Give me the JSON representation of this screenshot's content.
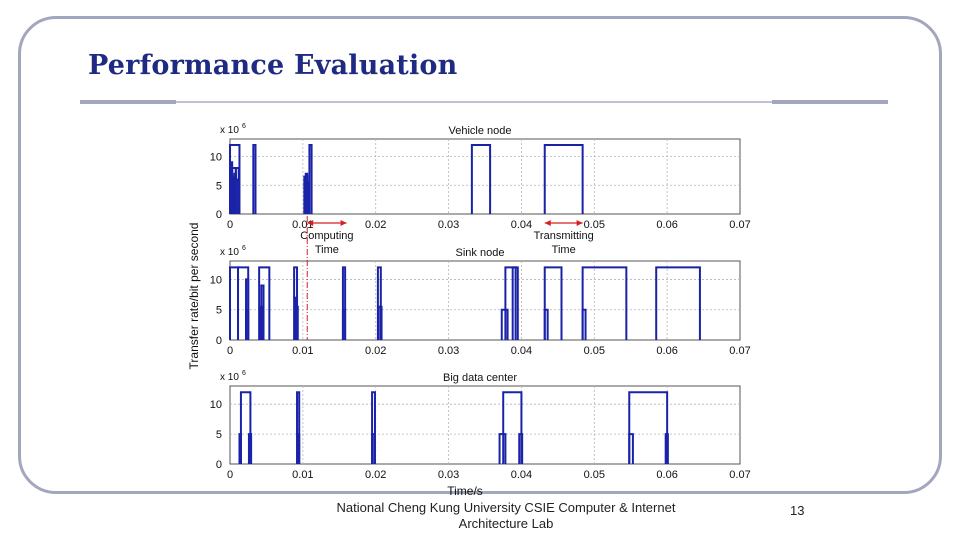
{
  "slide": {
    "title": "Performance Evaluation",
    "footer_line1": "National Cheng Kung University CSIE Computer & Internet",
    "footer_line2": "Architecture Lab",
    "page_number": "13"
  },
  "colors": {
    "title": "#1f2a82",
    "series": "#1a23a8",
    "annotation": "#d62020",
    "frame": "#a2a7bd"
  },
  "chart_data": {
    "type": "line",
    "ylabel": "Transfer rate/bit per second",
    "xlabel": "Time/s",
    "xlim": [
      0,
      0.07
    ],
    "ylim": [
      0,
      12
    ],
    "x_ticks": [
      "0",
      "0.01",
      "0.02",
      "0.03",
      "0.04",
      "0.05",
      "0.06",
      "0.07"
    ],
    "y_ticks": [
      "0",
      "5",
      "10"
    ],
    "y_exponent": "x 10",
    "y_exponent_power": "6",
    "grid": true,
    "panels": [
      {
        "title": "Vehicle node",
        "pulses": [
          {
            "start": 0.0,
            "end": 0.0013,
            "value": 12
          },
          {
            "start": 0.0005,
            "end": 0.0011,
            "value": 6
          },
          {
            "start": 0.0008,
            "end": 0.0012,
            "value": 8
          },
          {
            "start": 0.0006,
            "end": 0.0008,
            "value": 7
          },
          {
            "start": 0.0003,
            "end": 0.0004,
            "value": 6.5
          },
          {
            "start": 0.0002,
            "end": 0.0003,
            "value": 9
          },
          {
            "start": 0.0004,
            "end": 0.0005,
            "value": 6
          },
          {
            "start": 0.0001,
            "end": 0.0002,
            "value": 7.5
          },
          {
            "start": 0.0003,
            "end": 0.0008,
            "value": 8
          },
          {
            "start": 0.0032,
            "end": 0.0035,
            "value": 12
          },
          {
            "start": 0.0102,
            "end": 0.0106,
            "value": 6.5
          },
          {
            "start": 0.0109,
            "end": 0.0112,
            "value": 12
          },
          {
            "start": 0.0103,
            "end": 0.0107,
            "value": 5.5
          },
          {
            "start": 0.0104,
            "end": 0.0106,
            "value": 7
          },
          {
            "start": 0.0332,
            "end": 0.0357,
            "value": 12
          },
          {
            "start": 0.0432,
            "end": 0.0484,
            "value": 12
          }
        ]
      },
      {
        "title": "Sink node",
        "pulses": [
          {
            "start": 0.0,
            "end": 0.0011,
            "value": 12
          },
          {
            "start": 0.0011,
            "end": 0.0025,
            "value": 12
          },
          {
            "start": 0.0022,
            "end": 0.0025,
            "value": 5
          },
          {
            "start": 0.0022,
            "end": 0.0025,
            "value": 10
          },
          {
            "start": 0.004,
            "end": 0.0054,
            "value": 12
          },
          {
            "start": 0.0042,
            "end": 0.0045,
            "value": 5.5
          },
          {
            "start": 0.0043,
            "end": 0.0046,
            "value": 9
          },
          {
            "start": 0.0088,
            "end": 0.0092,
            "value": 12
          },
          {
            "start": 0.0089,
            "end": 0.0093,
            "value": 5.5
          },
          {
            "start": 0.009,
            "end": 0.0092,
            "value": 7
          },
          {
            "start": 0.0155,
            "end": 0.0158,
            "value": 12
          },
          {
            "start": 0.0155,
            "end": 0.0158,
            "value": 5
          },
          {
            "start": 0.0203,
            "end": 0.0207,
            "value": 12
          },
          {
            "start": 0.0204,
            "end": 0.0208,
            "value": 5.5
          },
          {
            "start": 0.0388,
            "end": 0.0395,
            "value": 12
          },
          {
            "start": 0.0378,
            "end": 0.0392,
            "value": 12
          },
          {
            "start": 0.0373,
            "end": 0.0381,
            "value": 5
          },
          {
            "start": 0.0432,
            "end": 0.0455,
            "value": 12
          },
          {
            "start": 0.0432,
            "end": 0.0436,
            "value": 5
          },
          {
            "start": 0.0484,
            "end": 0.0544,
            "value": 12
          },
          {
            "start": 0.0484,
            "end": 0.0488,
            "value": 5
          },
          {
            "start": 0.0585,
            "end": 0.0645,
            "value": 12
          }
        ]
      },
      {
        "title": "Big data center",
        "pulses": [
          {
            "start": 0.0013,
            "end": 0.0015,
            "value": 5
          },
          {
            "start": 0.0015,
            "end": 0.0028,
            "value": 12
          },
          {
            "start": 0.0026,
            "end": 0.0029,
            "value": 5
          },
          {
            "start": 0.0092,
            "end": 0.0095,
            "value": 12
          },
          {
            "start": 0.0093,
            "end": 0.0095,
            "value": 5
          },
          {
            "start": 0.0195,
            "end": 0.0199,
            "value": 12
          },
          {
            "start": 0.0195,
            "end": 0.0198,
            "value": 5
          },
          {
            "start": 0.0375,
            "end": 0.04,
            "value": 12
          },
          {
            "start": 0.037,
            "end": 0.0378,
            "value": 5
          },
          {
            "start": 0.0397,
            "end": 0.0401,
            "value": 5
          },
          {
            "start": 0.0548,
            "end": 0.06,
            "value": 12
          },
          {
            "start": 0.0548,
            "end": 0.0553,
            "value": 5
          },
          {
            "start": 0.0598,
            "end": 0.0601,
            "value": 5
          }
        ]
      }
    ],
    "annotations": [
      {
        "label_line1": "Computing",
        "label_line2": "Time",
        "x_start": 0.0106,
        "x_end": 0.016
      },
      {
        "label_line1": "Transmitting",
        "label_line2": "Time",
        "x_start": 0.0432,
        "x_end": 0.0484
      }
    ]
  }
}
